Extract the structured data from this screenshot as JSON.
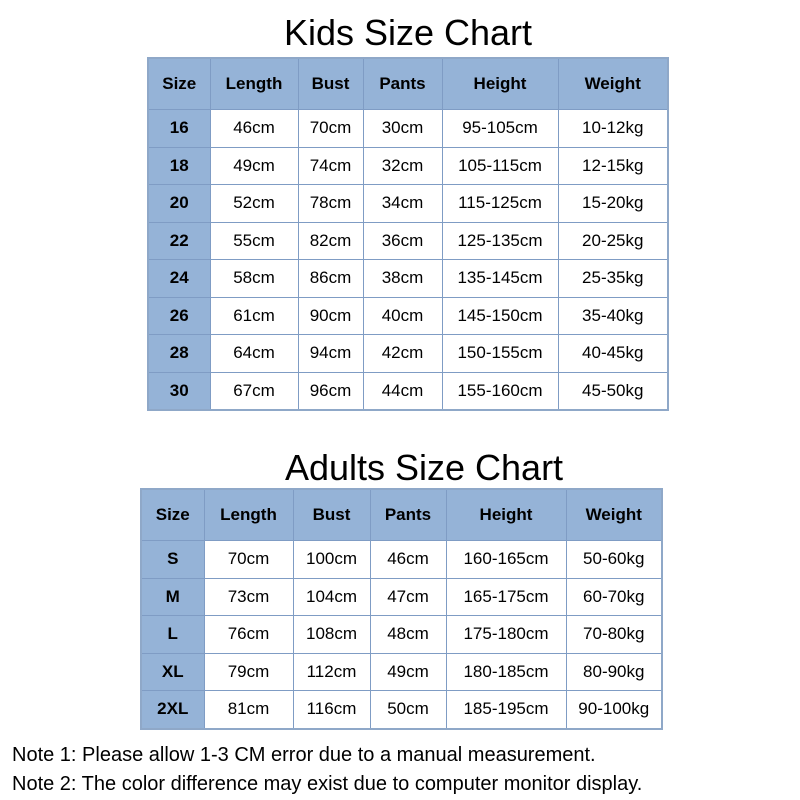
{
  "kids": {
    "title": "Kids Size Chart",
    "headers": [
      "Size",
      "Length",
      "Bust",
      "Pants",
      "Height",
      "Weight"
    ],
    "rows": [
      [
        "16",
        "46cm",
        "70cm",
        "30cm",
        "95-105cm",
        "10-12kg"
      ],
      [
        "18",
        "49cm",
        "74cm",
        "32cm",
        "105-115cm",
        "12-15kg"
      ],
      [
        "20",
        "52cm",
        "78cm",
        "34cm",
        "115-125cm",
        "15-20kg"
      ],
      [
        "22",
        "55cm",
        "82cm",
        "36cm",
        "125-135cm",
        "20-25kg"
      ],
      [
        "24",
        "58cm",
        "86cm",
        "38cm",
        "135-145cm",
        "25-35kg"
      ],
      [
        "26",
        "61cm",
        "90cm",
        "40cm",
        "145-150cm",
        "35-40kg"
      ],
      [
        "28",
        "64cm",
        "94cm",
        "42cm",
        "150-155cm",
        "40-45kg"
      ],
      [
        "30",
        "67cm",
        "96cm",
        "44cm",
        "155-160cm",
        "45-50kg"
      ]
    ]
  },
  "adults": {
    "title": "Adults Size Chart",
    "headers": [
      "Size",
      "Length",
      "Bust",
      "Pants",
      "Height",
      "Weight"
    ],
    "rows": [
      [
        "S",
        "70cm",
        "100cm",
        "46cm",
        "160-165cm",
        "50-60kg"
      ],
      [
        "M",
        "73cm",
        "104cm",
        "47cm",
        "165-175cm",
        "60-70kg"
      ],
      [
        "L",
        "76cm",
        "108cm",
        "48cm",
        "175-180cm",
        "70-80kg"
      ],
      [
        "XL",
        "79cm",
        "112cm",
        "49cm",
        "180-185cm",
        "80-90kg"
      ],
      [
        "2XL",
        "81cm",
        "116cm",
        "50cm",
        "185-195cm",
        "90-100kg"
      ]
    ]
  },
  "notes": [
    "Note 1: Please allow 1-3 CM error due to a manual measurement.",
    "Note 2: The color difference may exist due to computer monitor display."
  ],
  "colors": {
    "header_bg": "#95b3d7",
    "border": "#7f9cc4"
  }
}
